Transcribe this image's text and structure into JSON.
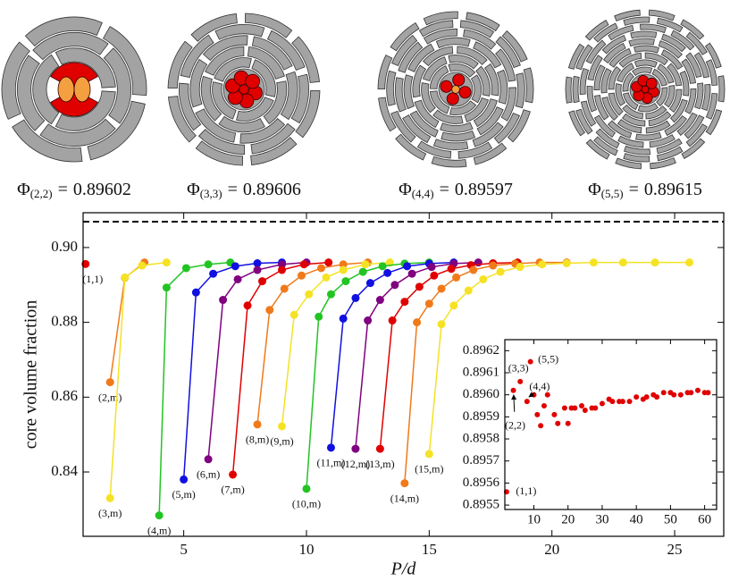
{
  "packings": [
    {
      "symbol": "Φ",
      "subscript": "(2,2)",
      "equals": "=",
      "value": 0.89602
    },
    {
      "symbol": "Φ",
      "subscript": "(3,3)",
      "equals": "=",
      "value": 0.89606
    },
    {
      "symbol": "Φ",
      "subscript": "(4,4)",
      "equals": "=",
      "value": 0.89597
    },
    {
      "symbol": "Φ",
      "subscript": "(5,5)",
      "equals": "=",
      "value": 0.89615
    }
  ],
  "chart_data": [
    {
      "type": "line",
      "x_label": "P/d",
      "y_label": "core volume fraction",
      "xlim": [
        0.9,
        27
      ],
      "ylim": [
        0.8228,
        0.9093
      ],
      "xticks": [
        5,
        10,
        15,
        20,
        25
      ],
      "yticks": [
        0.84,
        0.86,
        0.88,
        {
          "value": 0.9,
          "label": "0.90"
        }
      ],
      "reference_line": 0.9069,
      "grid": false,
      "series": [
        {
          "name": "(1,1)",
          "color": "#e00000",
          "x": [
            1.0
          ],
          "values": [
            0.8956
          ]
        },
        {
          "name": "(2,m)",
          "color": "#f07a1a",
          "x": [
            2.0,
            2.6,
            3.4
          ],
          "values": [
            0.864,
            0.8919,
            0.896
          ]
        },
        {
          "name": "(3,m)",
          "color": "#f5e225",
          "x": [
            2.0,
            2.6,
            3.3,
            4.3
          ],
          "values": [
            0.833,
            0.892,
            0.8952,
            0.896
          ]
        },
        {
          "name": "(4,m)",
          "color": "#22c422",
          "x": [
            4.0,
            4.3,
            5.1,
            6.0,
            6.9
          ],
          "values": [
            0.8284,
            0.8893,
            0.8945,
            0.8955,
            0.896
          ]
        },
        {
          "name": "(5,m)",
          "color": "#1010e0",
          "x": [
            5.0,
            5.5,
            6.2,
            7.1,
            8.0,
            9.0
          ],
          "values": [
            0.838,
            0.888,
            0.893,
            0.895,
            0.8958,
            0.896
          ]
        },
        {
          "name": "(6,m)",
          "color": "#800080",
          "x": [
            6.0,
            6.6,
            7.2,
            8.0,
            9.0,
            10.0
          ],
          "values": [
            0.8434,
            0.886,
            0.8915,
            0.894,
            0.8955,
            0.896
          ]
        },
        {
          "name": "(7,m)",
          "color": "#e00000",
          "x": [
            7.0,
            7.6,
            8.2,
            9.0,
            9.9,
            10.9
          ],
          "values": [
            0.8393,
            0.8845,
            0.891,
            0.894,
            0.8955,
            0.896
          ]
        },
        {
          "name": "(8,m)",
          "color": "#f07a1a",
          "x": [
            8.0,
            8.5,
            9.1,
            9.8,
            10.6,
            11.5,
            12.5
          ],
          "values": [
            0.8527,
            0.8833,
            0.889,
            0.8925,
            0.8945,
            0.8955,
            0.896
          ]
        },
        {
          "name": "(9,m)",
          "color": "#f5e225",
          "x": [
            9.0,
            9.5,
            10.1,
            10.8,
            11.5,
            12.4,
            13.4
          ],
          "values": [
            0.8522,
            0.882,
            0.8875,
            0.892,
            0.894,
            0.8955,
            0.896
          ]
        },
        {
          "name": "(10,m)",
          "color": "#22c422",
          "x": [
            10.0,
            10.5,
            11.0,
            11.6,
            12.3,
            13.1,
            14.0,
            15.0
          ],
          "values": [
            0.8355,
            0.8815,
            0.8875,
            0.891,
            0.8935,
            0.895,
            0.8957,
            0.896
          ]
        },
        {
          "name": "(11,m)",
          "color": "#1010e0",
          "x": [
            11.0,
            11.5,
            12.0,
            12.6,
            13.3,
            14.1,
            15.0,
            16.0
          ],
          "values": [
            0.8465,
            0.881,
            0.8865,
            0.8905,
            0.8932,
            0.895,
            0.8957,
            0.896
          ]
        },
        {
          "name": "(12,m)",
          "color": "#800080",
          "x": [
            12.0,
            12.5,
            13.0,
            13.6,
            14.3,
            15.1,
            16.0,
            17.0
          ],
          "values": [
            0.8462,
            0.8805,
            0.886,
            0.89,
            0.893,
            0.8948,
            0.8957,
            0.896
          ]
        },
        {
          "name": "(13,m)",
          "color": "#e00000",
          "x": [
            13.0,
            13.5,
            14.0,
            14.6,
            15.2,
            15.9,
            16.7,
            17.6,
            18.6
          ],
          "values": [
            0.8462,
            0.8805,
            0.8855,
            0.8895,
            0.8925,
            0.8943,
            0.8953,
            0.8958,
            0.896
          ]
        },
        {
          "name": "(14,m)",
          "color": "#f07a1a",
          "x": [
            14.0,
            14.5,
            15.0,
            15.5,
            16.1,
            16.8,
            17.6,
            18.5,
            19.5,
            20.6
          ],
          "values": [
            0.837,
            0.88,
            0.885,
            0.889,
            0.892,
            0.894,
            0.8952,
            0.8957,
            0.896,
            0.896
          ]
        },
        {
          "name": "(15,m)",
          "color": "#f5e225",
          "x": [
            15.0,
            15.5,
            16.0,
            16.6,
            17.2,
            17.9,
            18.7,
            19.6,
            20.6,
            21.7,
            22.9,
            24.2,
            25.6
          ],
          "values": [
            0.8448,
            0.8795,
            0.8845,
            0.8885,
            0.8915,
            0.8935,
            0.8948,
            0.8955,
            0.8958,
            0.896,
            0.896,
            0.896,
            0.896
          ]
        }
      ]
    },
    {
      "type": "scatter",
      "xlim": [
        1.5,
        63.5
      ],
      "ylim": [
        0.89548,
        0.89625
      ],
      "xticks": [
        10,
        20,
        30,
        40,
        50,
        60
      ],
      "yticks": [
        0.8955,
        0.8956,
        0.8957,
        0.8958,
        0.8959,
        {
          "value": 0.896,
          "label": "0.8960"
        },
        0.8961,
        0.8962
      ],
      "color": "#e00000",
      "annotations": [
        "(1,1)",
        "(2,2)",
        "(3,3)",
        "(4,4)",
        "(5,5)"
      ],
      "x": [
        2,
        4,
        6,
        8,
        9,
        10,
        11,
        12,
        13,
        14,
        16,
        17,
        19,
        20,
        21,
        22,
        24,
        25,
        27,
        28,
        30,
        32,
        33,
        35,
        36,
        38,
        40,
        42,
        43,
        45,
        46,
        48,
        50,
        51,
        53,
        55,
        56,
        58,
        60,
        61
      ],
      "values": [
        0.89556,
        0.89602,
        0.89606,
        0.89597,
        0.89615,
        0.896,
        0.89591,
        0.89586,
        0.89595,
        0.896,
        0.89591,
        0.89587,
        0.89594,
        0.89587,
        0.89594,
        0.89594,
        0.89595,
        0.89593,
        0.89594,
        0.89594,
        0.89596,
        0.89598,
        0.89597,
        0.89597,
        0.89597,
        0.89597,
        0.89599,
        0.89598,
        0.89599,
        0.896,
        0.89599,
        0.89601,
        0.89601,
        0.896,
        0.896,
        0.89601,
        0.89601,
        0.89602,
        0.89601,
        0.89601
      ]
    }
  ]
}
